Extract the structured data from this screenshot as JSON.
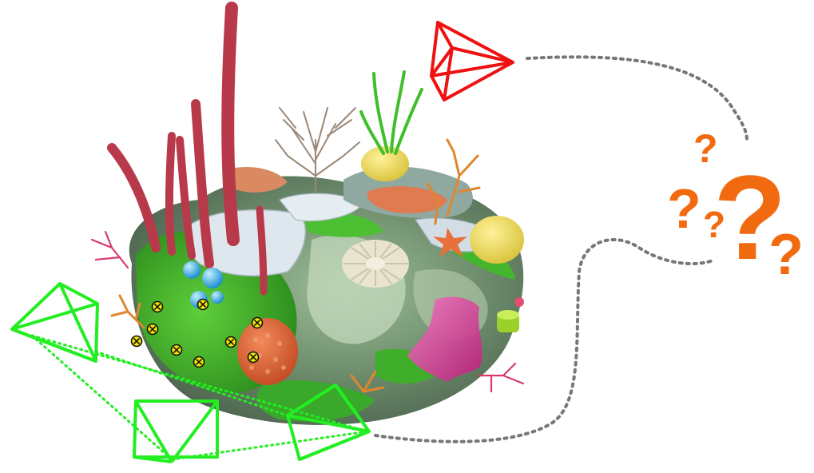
{
  "scene": {
    "subject": "coral-reef-rock",
    "known_cameras": {
      "count": 3,
      "color": "#22ee22"
    },
    "query_camera": {
      "color": "#ee1111"
    },
    "feature_points": {
      "count": 10,
      "fill": "#f2e600",
      "stroke": "#111111"
    },
    "path_color": "#777777",
    "question_color": "#f26a10",
    "question_marks": [
      "?",
      "?",
      "?",
      "?",
      "?"
    ]
  }
}
